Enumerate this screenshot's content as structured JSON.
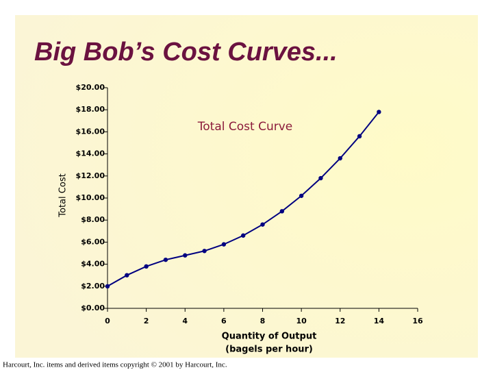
{
  "title": "Big Bob’s Cost Curves...",
  "footer": "Harcourt, Inc. items and derived items copyright © 2001 by Harcourt, Inc.",
  "chart_data": {
    "type": "line",
    "annotation": "Total Cost Curve",
    "ylabel": "Total Cost",
    "xlabel": [
      "Quantity of Output",
      "(bagels per hour)"
    ],
    "x": [
      0,
      1,
      2,
      3,
      4,
      5,
      6,
      7,
      8,
      9,
      10,
      11,
      12,
      13,
      14
    ],
    "series": [
      {
        "name": "Total Cost",
        "color": "#000080",
        "values": [
          2.0,
          3.0,
          3.8,
          4.4,
          4.8,
          5.2,
          5.8,
          6.6,
          7.6,
          8.8,
          10.2,
          11.8,
          13.6,
          15.6,
          17.8
        ]
      }
    ],
    "xlim": [
      0,
      16
    ],
    "xticks": [
      0,
      2,
      4,
      6,
      8,
      10,
      12,
      14,
      16
    ],
    "ylim": [
      0,
      20
    ],
    "yticks": [
      {
        "value": 0,
        "label": "$0.00"
      },
      {
        "value": 2,
        "label": "$2.00"
      },
      {
        "value": 4,
        "label": "$4.00"
      },
      {
        "value": 6,
        "label": "$6.00"
      },
      {
        "value": 8,
        "label": "$8.00"
      },
      {
        "value": 10,
        "label": "$10.00"
      },
      {
        "value": 12,
        "label": "$12.00"
      },
      {
        "value": 14,
        "label": "$14.00"
      },
      {
        "value": 16,
        "label": "$16.00"
      },
      {
        "value": 18,
        "label": "$18.00"
      },
      {
        "value": 20,
        "label": "$20.00"
      }
    ],
    "grid": false
  }
}
